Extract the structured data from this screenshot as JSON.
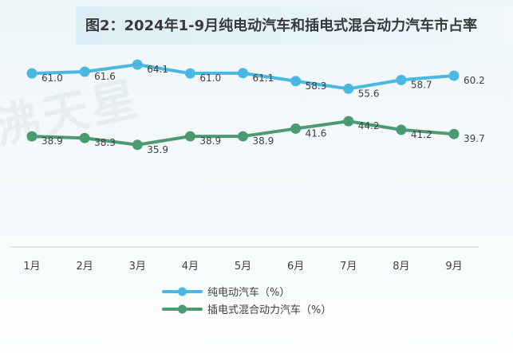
{
  "title": "图2：2024年1-9月纯电动汽车和插电式混合动力汽车市占率",
  "chart_data": {
    "type": "line",
    "title": "图2：2024年1-9月纯电动汽车和插电式混合动力汽车市占率",
    "categories": [
      "1月",
      "2月",
      "3月",
      "4月",
      "5月",
      "6月",
      "7月",
      "8月",
      "9月"
    ],
    "series": [
      {
        "name": "纯电动汽车（%）",
        "color": "#4ab8e0",
        "values": [
          61.0,
          61.6,
          64.1,
          61.0,
          61.1,
          58.3,
          55.6,
          58.7,
          60.2
        ]
      },
      {
        "name": "插电式混合动力汽车（%）",
        "color": "#4c9a72",
        "values": [
          38.9,
          38.3,
          35.9,
          38.9,
          38.9,
          41.6,
          44.2,
          41.2,
          39.7
        ]
      }
    ],
    "ylabel": "",
    "xlabel": "",
    "ylim": [
      0,
      70
    ],
    "grid": false,
    "legend": "bottom-center"
  }
}
